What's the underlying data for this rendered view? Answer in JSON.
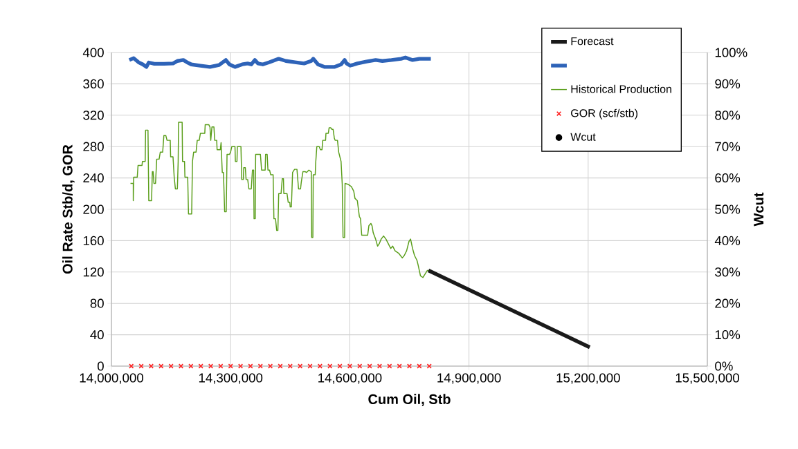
{
  "chart_data": {
    "type": "line",
    "xlabel": "Cum Oil, Stb",
    "ylabel": "Oil Rate Stb/d, GOR",
    "y2label": "Wcut",
    "xlim": [
      14000000,
      15500000
    ],
    "xticks": [
      {
        "value": 14000000,
        "label": "14,000,000"
      },
      {
        "value": 14300000,
        "label": "14,300,000"
      },
      {
        "value": 14600000,
        "label": "14,600,000"
      },
      {
        "value": 14900000,
        "label": "14,900,000"
      },
      {
        "value": 15200000,
        "label": "15,200,000"
      },
      {
        "value": 15500000,
        "label": "15,500,000"
      }
    ],
    "ylim": [
      0,
      400
    ],
    "yticks": [
      0,
      40,
      80,
      120,
      160,
      200,
      240,
      280,
      320,
      360,
      400
    ],
    "y2lim": [
      0,
      100
    ],
    "y2ticks": [
      {
        "value": 0,
        "label": "0%"
      },
      {
        "value": 10,
        "label": "10%"
      },
      {
        "value": 20,
        "label": "20%"
      },
      {
        "value": 30,
        "label": "30%"
      },
      {
        "value": 40,
        "label": "40%"
      },
      {
        "value": 50,
        "label": "50%"
      },
      {
        "value": 60,
        "label": "60%"
      },
      {
        "value": 70,
        "label": "70%"
      },
      {
        "value": 80,
        "label": "80%"
      },
      {
        "value": 90,
        "label": "90%"
      },
      {
        "value": 100,
        "label": "100%"
      }
    ],
    "grid": true,
    "legend": "top right",
    "series": [
      {
        "name": "Forecast",
        "color": "#1a1a1a",
        "x": [
          14798000,
          15204000
        ],
        "values": [
          122,
          24
        ]
      },
      {
        "type": "line",
        "axis": "y2",
        "color": "#2e63b8",
        "x": [
          14045000,
          14056000,
          14068000,
          14079000,
          14088000,
          14094000,
          14108000,
          14132000,
          14155000,
          14166000,
          14181000,
          14190000,
          14201000,
          14224000,
          14248000,
          14271000,
          14288000,
          14297000,
          14311000,
          14329000,
          14343000,
          14352000,
          14361000,
          14369000,
          14381000,
          14398000,
          14421000,
          14439000,
          14462000,
          14485000,
          14503000,
          14508000,
          14520000,
          14537000,
          14561000,
          14578000,
          14587000,
          14592000,
          14601000,
          14619000,
          14642000,
          14665000,
          14682000,
          14705000,
          14729000,
          14740000,
          14758000,
          14775000,
          14804000
        ],
        "values": [
          97.6,
          98.2,
          96.9,
          96.2,
          95.4,
          96.8,
          96.4,
          96.4,
          96.5,
          97.3,
          97.6,
          96.9,
          96.2,
          95.8,
          95.4,
          96.0,
          97.6,
          96.2,
          95.4,
          96.2,
          96.5,
          96.2,
          97.6,
          96.5,
          96.2,
          96.9,
          98.0,
          97.3,
          96.9,
          96.5,
          97.3,
          98.0,
          96.2,
          95.4,
          95.4,
          96.2,
          97.6,
          96.5,
          95.8,
          96.5,
          97.1,
          97.6,
          97.3,
          97.6,
          98.0,
          98.4,
          97.6,
          98.0,
          98.0
        ]
      },
      {
        "name": "Historical Production",
        "type": "step",
        "color": "#5a9e1a",
        "x": [
          14048000,
          14055000,
          14055000,
          14056000,
          14065000,
          14067000,
          14077000,
          14078000,
          14085000,
          14086000,
          14092000,
          14094000,
          14101000,
          14103000,
          14105000,
          14107000,
          14111000,
          14114000,
          14120000,
          14123000,
          14129000,
          14132000,
          14137000,
          14140000,
          14148000,
          14149000,
          14155000,
          14158000,
          14161000,
          14166000,
          14168000,
          14169000,
          14178000,
          14179000,
          14184000,
          14185000,
          14192000,
          14194000,
          14202000,
          14204000,
          14207000,
          14213000,
          14216000,
          14221000,
          14224000,
          14235000,
          14236000,
          14245000,
          14248000,
          14250000,
          14253000,
          14258000,
          14260000,
          14265000,
          14266000,
          14274000,
          14276000,
          14279000,
          14282000,
          14285000,
          14289000,
          14291000,
          14297000,
          14300000,
          14303000,
          14311000,
          14312000,
          14316000,
          14317000,
          14326000,
          14328000,
          14332000,
          14333000,
          14337000,
          14339000,
          14343000,
          14346000,
          14352000,
          14355000,
          14358000,
          14359000,
          14362000,
          14363000,
          14375000,
          14378000,
          14387000,
          14388000,
          14392000,
          14394000,
          14398000,
          14401000,
          14407000,
          14409000,
          14413000,
          14416000,
          14419000,
          14421000,
          14427000,
          14430000,
          14433000,
          14434000,
          14442000,
          14445000,
          14449000,
          14450000,
          14453000,
          14456000,
          14461000,
          14467000,
          14471000,
          14476000,
          14478000,
          14482000,
          14488000,
          14491000,
          14497000,
          14503000,
          14504000,
          14507000,
          14508000,
          14513000,
          14514000,
          14517000,
          14523000,
          14526000,
          14530000,
          14532000,
          14539000,
          14540000,
          14546000,
          14548000,
          14552000,
          14555000,
          14558000,
          14561000,
          14563000,
          14569000,
          14572000,
          14578000,
          14581000,
          14583000,
          14587000,
          14588000,
          14595000,
          14604000,
          14610000,
          14613000,
          14619000,
          14621000,
          14624000,
          14627000,
          14630000,
          14645000,
          14648000,
          14653000,
          14656000,
          14659000,
          14665000,
          14670000,
          14674000,
          14679000,
          14685000,
          14691000,
          14697000,
          14703000,
          14708000,
          14714000,
          14723000,
          14732000,
          14737000,
          14743000,
          14749000,
          14753000,
          14758000,
          14763000,
          14769000,
          14772000,
          14778000,
          14784000,
          14789000,
          14795000,
          14798000
        ],
        "values": [
          233,
          233,
          211,
          241,
          241,
          256,
          256,
          261,
          261,
          301,
          301,
          211,
          211,
          248,
          248,
          233,
          233,
          264,
          264,
          273,
          273,
          294,
          294,
          288,
          288,
          267,
          267,
          241,
          226,
          226,
          261,
          311,
          311,
          261,
          261,
          241,
          241,
          194,
          194,
          261,
          273,
          273,
          288,
          288,
          297,
          297,
          308,
          308,
          305,
          288,
          305,
          305,
          288,
          288,
          276,
          276,
          285,
          247,
          247,
          197,
          197,
          270,
          270,
          273,
          280,
          280,
          261,
          261,
          280,
          280,
          238,
          238,
          253,
          253,
          238,
          238,
          226,
          226,
          250,
          250,
          188,
          188,
          270,
          270,
          250,
          250,
          270,
          270,
          250,
          250,
          244,
          244,
          188,
          188,
          173,
          173,
          220,
          220,
          239,
          239,
          220,
          220,
          209,
          209,
          203,
          203,
          247,
          251,
          251,
          226,
          226,
          235,
          248,
          248,
          247,
          250,
          248,
          164,
          164,
          244,
          244,
          258,
          280,
          280,
          276,
          276,
          288,
          288,
          297,
          297,
          304,
          304,
          302,
          302,
          291,
          288,
          288,
          273,
          261,
          232,
          164,
          164,
          233,
          232,
          229,
          223,
          214,
          211,
          203,
          191,
          188,
          167,
          167,
          179,
          182,
          179,
          170,
          162,
          153,
          156,
          162,
          166,
          162,
          156,
          150,
          153,
          147,
          144,
          138,
          141,
          147,
          159,
          162,
          150,
          141,
          135,
          129,
          115,
          113,
          117,
          122,
          122
        ]
      },
      {
        "name": "GOR (scf/stb)",
        "type": "scatter",
        "marker": "cross",
        "color": "#ff2020",
        "x": [
          14050000,
          14075000,
          14100000,
          14125000,
          14150000,
          14175000,
          14200000,
          14225000,
          14250000,
          14275000,
          14300000,
          14325000,
          14350000,
          14375000,
          14400000,
          14425000,
          14450000,
          14475000,
          14500000,
          14525000,
          14550000,
          14575000,
          14600000,
          14625000,
          14650000,
          14675000,
          14700000,
          14725000,
          14750000,
          14775000,
          14800000
        ],
        "values": [
          0,
          0,
          0,
          0,
          0,
          0,
          0,
          0,
          0,
          0,
          0,
          0,
          0,
          0,
          0,
          0,
          0,
          0,
          0,
          0,
          0,
          0,
          0,
          0,
          0,
          0,
          0,
          0,
          0,
          0,
          0
        ]
      },
      {
        "name": "Wcut",
        "type": "scatter",
        "marker": "circle",
        "axis": "y2",
        "color": "#000000"
      }
    ]
  }
}
